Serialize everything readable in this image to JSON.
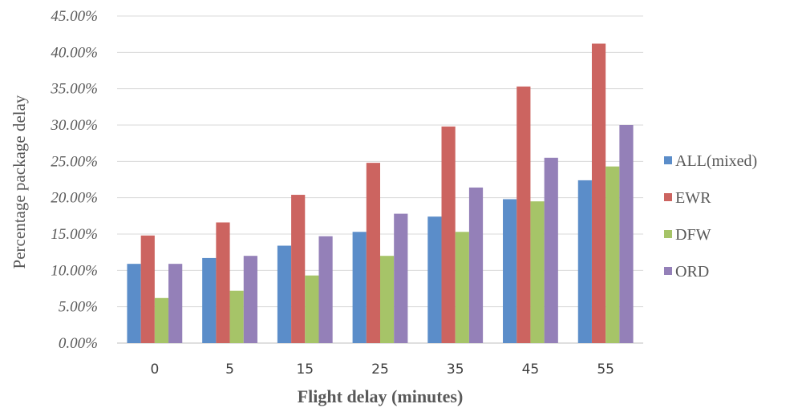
{
  "chart_data": {
    "type": "bar",
    "title": "",
    "xlabel": "Flight delay (minutes)",
    "ylabel": "Percentage package delay",
    "categories": [
      "0",
      "5",
      "15",
      "25",
      "35",
      "45",
      "55"
    ],
    "ylim": [
      0,
      45
    ],
    "yticks": [
      "0.00%",
      "5.00%",
      "10.00%",
      "15.00%",
      "20.00%",
      "25.00%",
      "30.00%",
      "35.00%",
      "40.00%",
      "45.00%"
    ],
    "grid": true,
    "legend_position": "right",
    "series": [
      {
        "name": "ALL(mixed)",
        "color": "#5B8DC9",
        "values": [
          10.9,
          11.7,
          13.4,
          15.3,
          17.4,
          19.8,
          22.4
        ]
      },
      {
        "name": "EWR",
        "color": "#CC6460",
        "values": [
          14.8,
          16.6,
          20.4,
          24.8,
          29.8,
          35.3,
          41.2
        ]
      },
      {
        "name": "DFW",
        "color": "#A6C468",
        "values": [
          6.2,
          7.2,
          9.3,
          12.0,
          15.3,
          19.5,
          24.3
        ]
      },
      {
        "name": "ORD",
        "color": "#9480B8",
        "values": [
          10.9,
          12.0,
          14.7,
          17.8,
          21.4,
          25.5,
          30.0
        ]
      }
    ]
  }
}
